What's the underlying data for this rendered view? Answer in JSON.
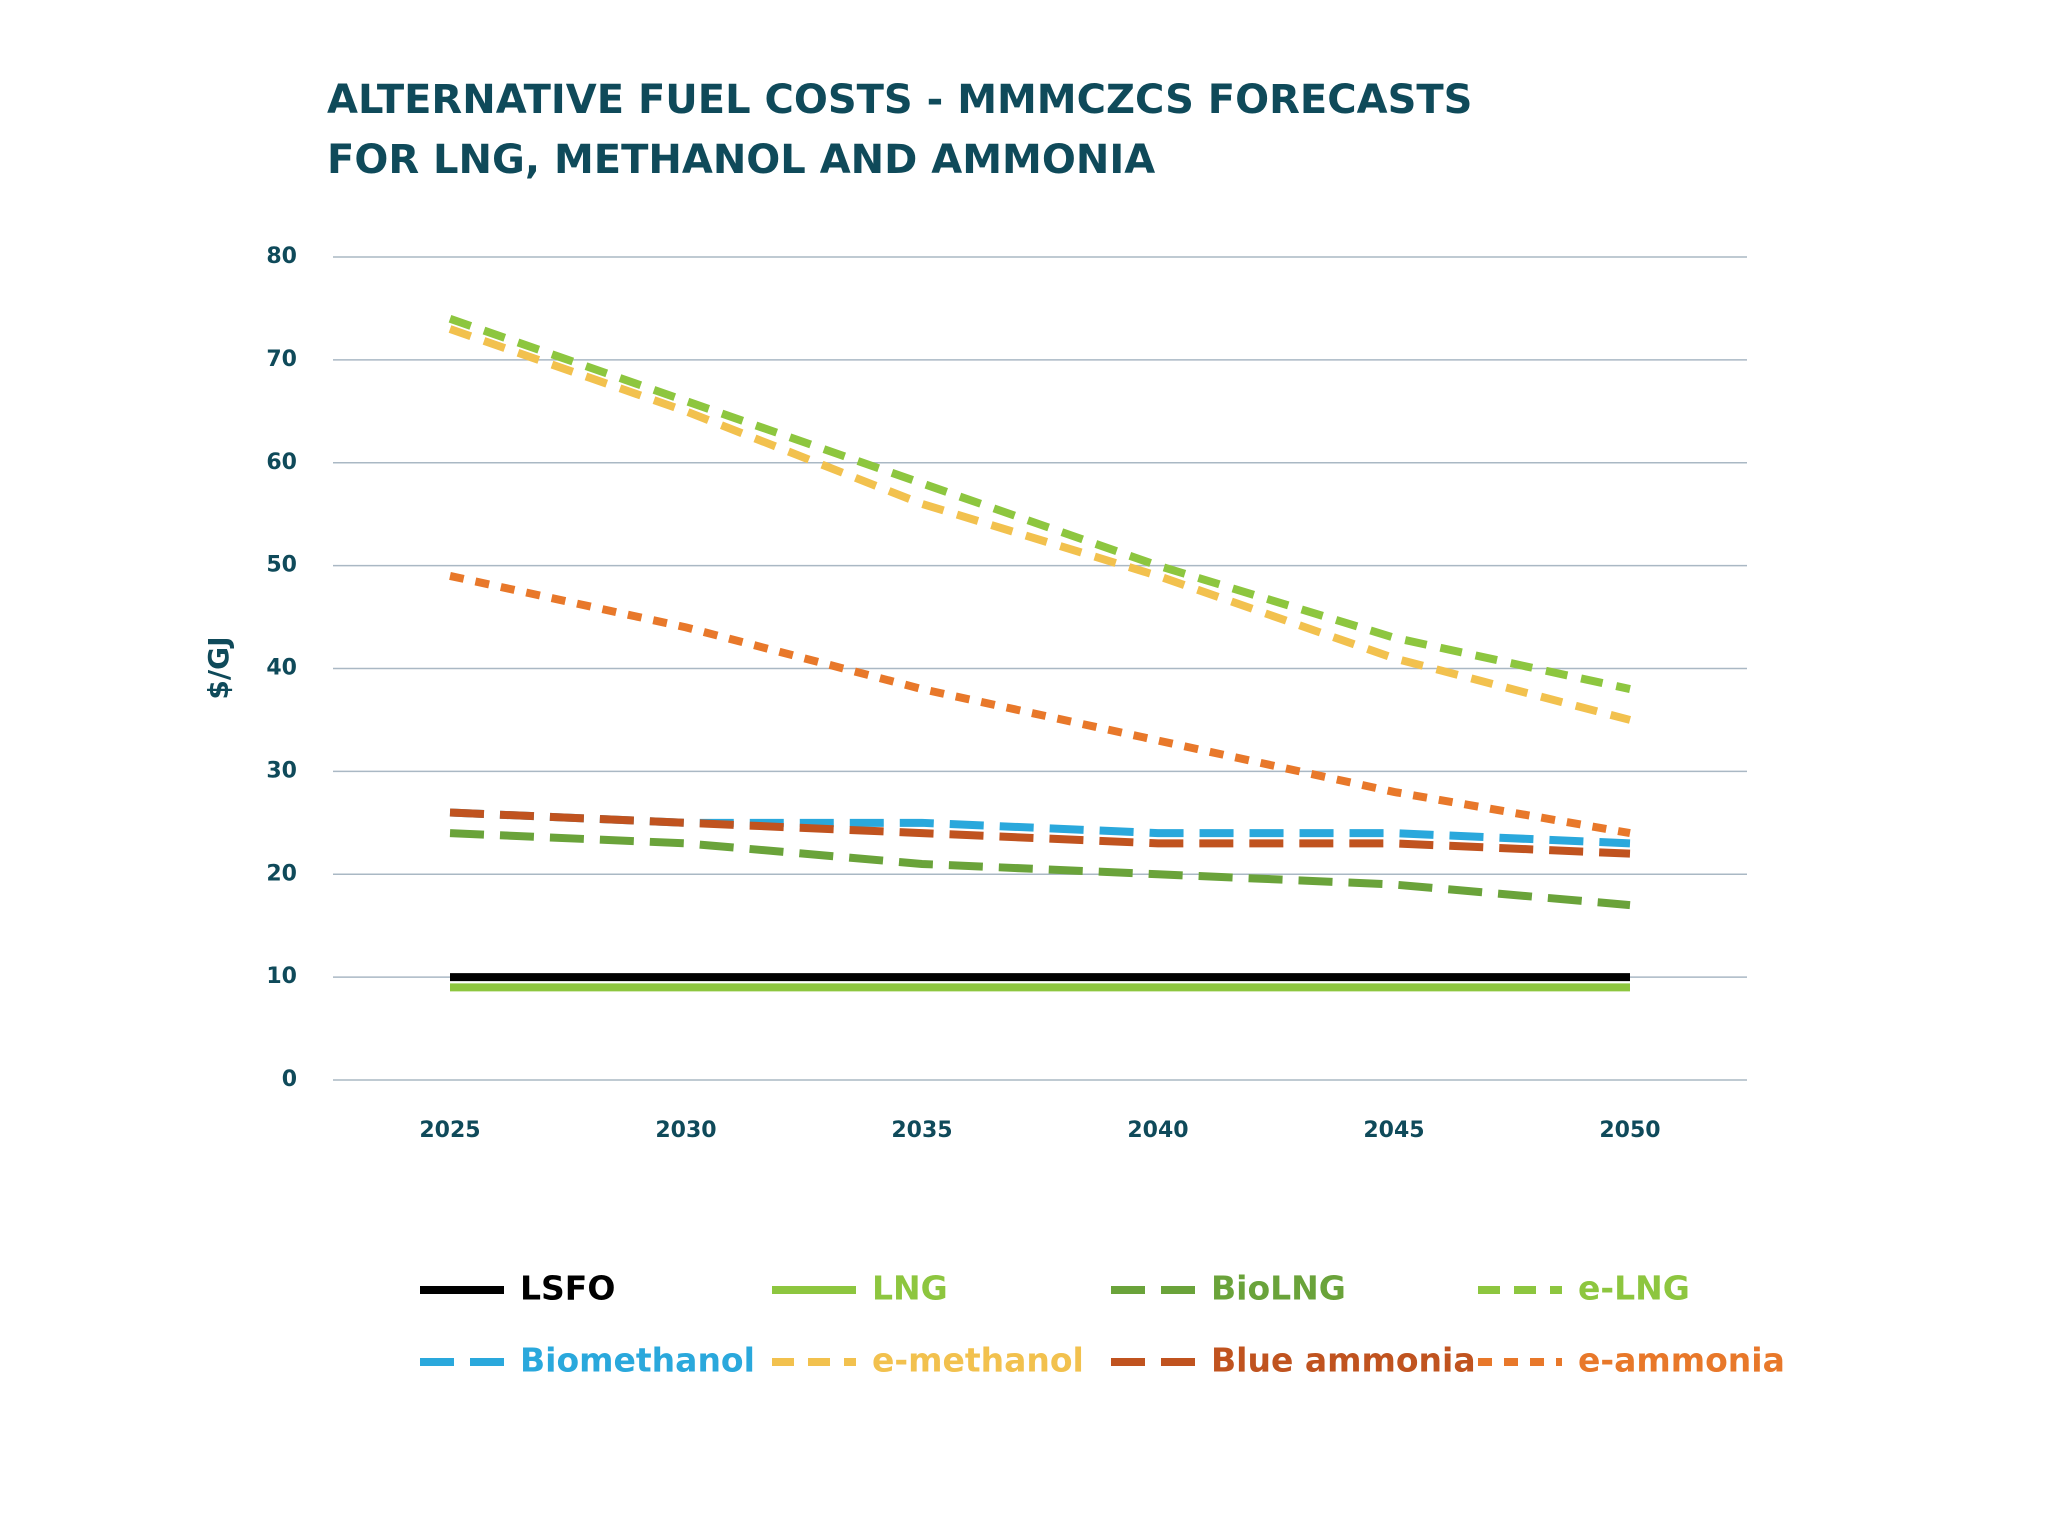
{
  "chart_data": {
    "type": "line",
    "title": "ALTERNATIVE FUEL COSTS - MMMCZCS FORECASTS",
    "subtitle": "FOR LNG, METHANOL AND AMMONIA",
    "y_label": "$/GJ",
    "categories": [
      "2025",
      "2030",
      "2035",
      "2040",
      "2045",
      "2050"
    ],
    "ylim": [
      0,
      80
    ],
    "yticks": [
      0,
      10,
      20,
      30,
      40,
      50,
      60,
      70,
      80
    ],
    "grid": true,
    "series": [
      {
        "name": "LSFO",
        "color": "#000000",
        "dash": "solid",
        "values": [
          10,
          10,
          10,
          10,
          10,
          10
        ]
      },
      {
        "name": "LNG",
        "color": "#8dc63f",
        "dash": "solid",
        "values": [
          9,
          9,
          9,
          9,
          9,
          9
        ]
      },
      {
        "name": "BioLNG",
        "color": "#6aa33a",
        "dash": "long",
        "values": [
          24,
          23,
          21,
          20,
          19,
          17
        ]
      },
      {
        "name": "e-LNG",
        "color": "#8dc63f",
        "dash": "medium",
        "values": [
          74,
          66,
          58,
          50,
          43,
          38
        ]
      },
      {
        "name": "Biomethanol",
        "color": "#2aa8dc",
        "dash": "long",
        "values": [
          26,
          25,
          25,
          24,
          24,
          23
        ]
      },
      {
        "name": "e-methanol",
        "color": "#f2c14e",
        "dash": "medium",
        "values": [
          73,
          65,
          56,
          49,
          41,
          35
        ]
      },
      {
        "name": "Blue ammonia",
        "color": "#c0531f",
        "dash": "long",
        "values": [
          26,
          25,
          24,
          23,
          23,
          22
        ]
      },
      {
        "name": "e-ammonia",
        "color": "#e8782a",
        "dash": "short",
        "values": [
          49,
          44,
          38,
          33,
          28,
          24
        ]
      }
    ]
  }
}
